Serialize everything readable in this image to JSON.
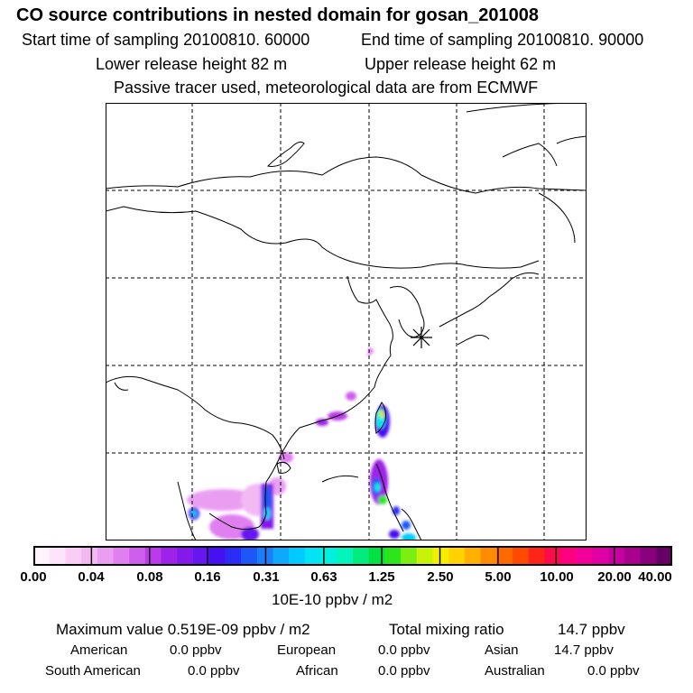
{
  "header": {
    "title": "CO  source contributions in nested domain for gosan_201008",
    "start_time": "Start time of sampling 20100810. 60000",
    "end_time": "End time of sampling 20100810. 90000",
    "lower_height": "Lower release height   82 m",
    "upper_height": "Upper release height   62 m",
    "tracer_note": "Passive tracer used, meteorological data are from ECMWF"
  },
  "colorbar": {
    "tick_labels": [
      "0.00",
      "0.04",
      "0.08",
      "0.16",
      "0.31",
      "0.63",
      "1.25",
      "2.50",
      "5.00",
      "10.00",
      "20.00",
      "40.00"
    ],
    "units": "10E-10 ppbv / m2",
    "colors": [
      "#fff4fc",
      "#fde3fb",
      "#f8cef7",
      "#f2b9f3",
      "#ea9ef2",
      "#df7ff0",
      "#cf5ded",
      "#bb3ae9",
      "#9f22e8",
      "#8419ec",
      "#6616ef",
      "#4710f2",
      "#2c2cf6",
      "#1e56f8",
      "#1a7ef9",
      "#10a8fc",
      "#00cbff",
      "#00e4f4",
      "#00f2de",
      "#00f5bc",
      "#00ec7d",
      "#00e243",
      "#2ae61a",
      "#7dee11",
      "#c8f208",
      "#f2ee00",
      "#ffd200",
      "#ffb000",
      "#ff8b00",
      "#ff6a00",
      "#ff4a00",
      "#ff2418",
      "#ff0a4a",
      "#ff0080",
      "#f2009a",
      "#e000a6",
      "#c8009e",
      "#aa0090",
      "#8a007c",
      "#660066"
    ]
  },
  "stats": {
    "max_value": "Maximum value  0.519E-09 ppbv / m2",
    "total_label": "Total mixing ratio",
    "total_value": "14.7 ppbv",
    "regions": [
      {
        "name": "American",
        "value": "0.0 ppbv"
      },
      {
        "name": "European",
        "value": "0.0 ppbv"
      },
      {
        "name": "Asian",
        "value": "14.7 ppbv"
      },
      {
        "name": "South American",
        "value": "0.0 ppbv"
      },
      {
        "name": "African",
        "value": "0.0 ppbv"
      },
      {
        "name": "Australian",
        "value": "0.0 ppbv"
      }
    ]
  },
  "map": {
    "station_marker": "receptor-asterisk",
    "coastline_color": "#000000",
    "grid_color": "#000000"
  }
}
